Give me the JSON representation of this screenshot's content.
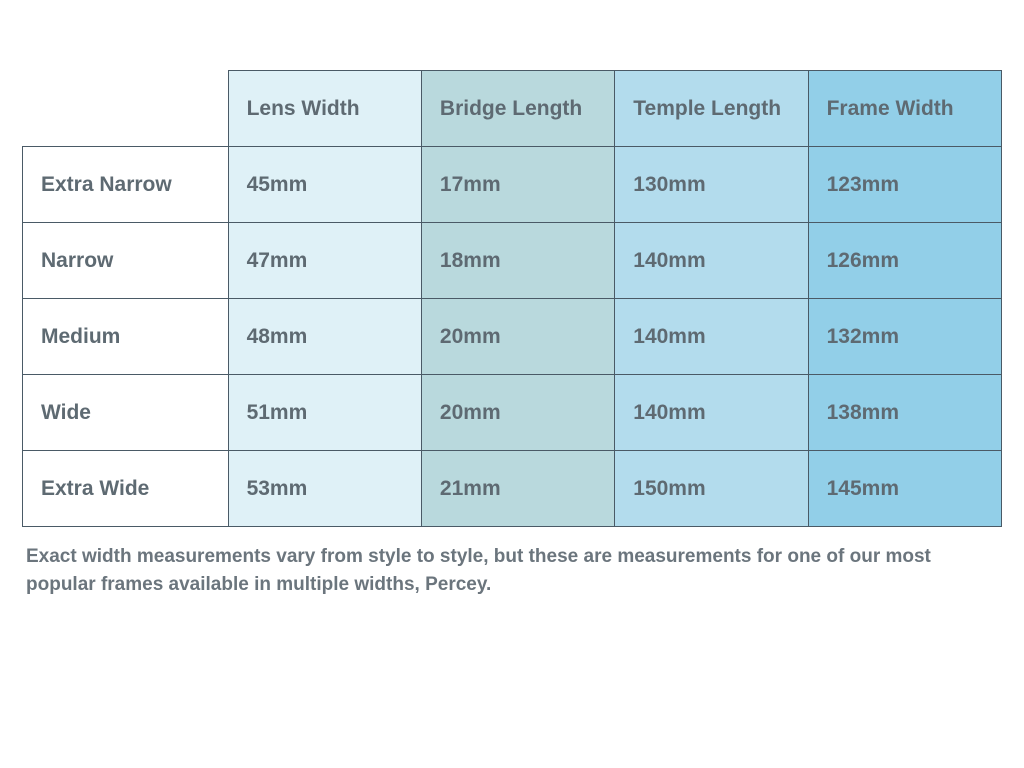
{
  "table": {
    "type": "table",
    "border_color": "#4a5a66",
    "text_color": "#5e6a72",
    "header_fontsize": 21,
    "cell_fontsize": 21,
    "columns": [
      {
        "label": "Lens Width",
        "bg": "#dff1f7"
      },
      {
        "label": "Bridge Length",
        "bg": "#b9d9dd"
      },
      {
        "label": "Temple Length",
        "bg": "#b3dced"
      },
      {
        "label": "Frame Width",
        "bg": "#92cfe8"
      }
    ],
    "row_header_bg": "#ffffff",
    "rows": [
      {
        "label": "Extra Narrow",
        "cells": [
          "45mm",
          "17mm",
          "130mm",
          "123mm"
        ]
      },
      {
        "label": "Narrow",
        "cells": [
          "47mm",
          "18mm",
          "140mm",
          "126mm"
        ]
      },
      {
        "label": "Medium",
        "cells": [
          "48mm",
          "20mm",
          "140mm",
          "132mm"
        ]
      },
      {
        "label": "Wide",
        "cells": [
          "51mm",
          "20mm",
          "140mm",
          "138mm"
        ]
      },
      {
        "label": "Extra Wide",
        "cells": [
          "53mm",
          "21mm",
          "150mm",
          "145mm"
        ]
      }
    ]
  },
  "footnote": "Exact width measurements vary from style to style, but these are measurements for one of our most popular frames available in multiple widths, Percey."
}
